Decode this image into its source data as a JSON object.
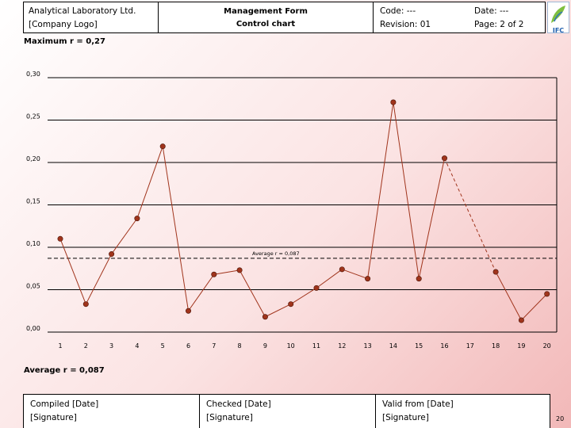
{
  "header": {
    "company": "Analytical Laboratory Ltd.",
    "logo_placeholder": "[Company Logo]",
    "form_title": "Management Form",
    "form_subtitle": "Control chart",
    "code": "Code: ---",
    "revision": "Revision: 01",
    "date": "Date: ---",
    "page": "Page: 2 of 2"
  },
  "logo_text": "IFC",
  "max_label": "Maximum r = 0,27",
  "avg_label": "Average r = 0,087",
  "footer": {
    "compiled": "Compiled [Date]",
    "compiled_sig": "[Signature]",
    "checked": "Checked [Date]",
    "checked_sig": "[Signature]",
    "valid": "Valid from [Date]",
    "valid_sig": "[Signature]"
  },
  "page_number": "20",
  "chart_data": {
    "type": "line",
    "title": "",
    "xlabel": "",
    "ylabel": "",
    "x": [
      1,
      2,
      3,
      4,
      5,
      6,
      7,
      8,
      9,
      10,
      11,
      12,
      13,
      14,
      15,
      16,
      17,
      18,
      19,
      20
    ],
    "values": [
      0.11,
      0.033,
      0.092,
      0.134,
      0.219,
      0.025,
      0.068,
      0.073,
      0.018,
      0.033,
      0.052,
      0.074,
      0.063,
      0.271,
      0.063,
      0.205,
      null,
      0.071,
      0.014,
      0.045
    ],
    "ylim": [
      0,
      0.3
    ],
    "yticks": [
      "0,00",
      "0,05",
      "0,10",
      "0,15",
      "0,20",
      "0,25",
      "0,30"
    ],
    "grid": true,
    "average_line": {
      "value": 0.087,
      "label": "Average r = 0,087"
    },
    "gap_bridge": {
      "from": 16,
      "to": 18
    },
    "colors": {
      "line": "#a0341c",
      "marker": "#a0341c",
      "grid": "#000000",
      "avg": "#000000"
    }
  }
}
